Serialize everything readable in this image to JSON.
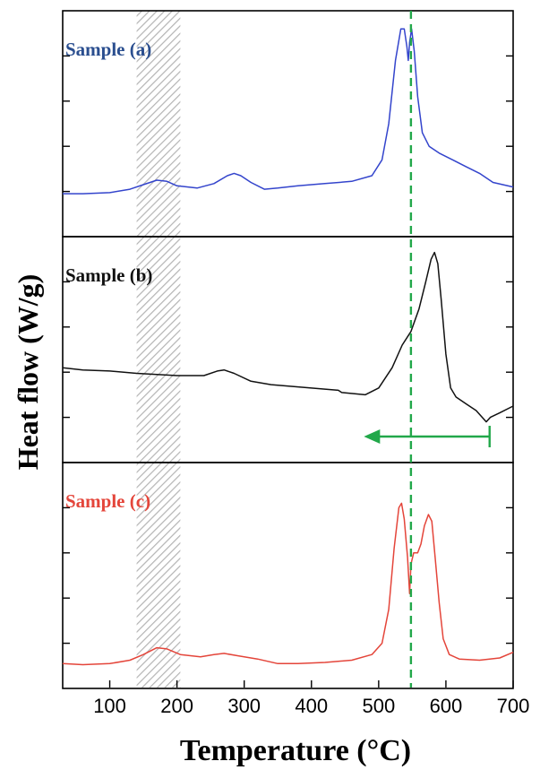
{
  "chart_data": {
    "type": "line",
    "xlabel": "Temperature (°C)",
    "ylabel": "Heat flow (W/g)",
    "xlim": [
      30,
      700
    ],
    "xticks": [
      100,
      200,
      300,
      400,
      500,
      600,
      700
    ],
    "grid": false,
    "legend": "none",
    "shaded_band": [
      140,
      205
    ],
    "reference_line_x": 548,
    "arrow": {
      "from_x": 665,
      "to_x": 478,
      "color": "#22a84a",
      "direction": "left"
    },
    "panels": [
      {
        "label": "Sample (a)",
        "color": "#3344cc",
        "label_color": "#2a4e8f",
        "ylim": [
          0,
          1
        ],
        "points": [
          [
            30,
            0.19
          ],
          [
            60,
            0.19
          ],
          [
            100,
            0.195
          ],
          [
            130,
            0.21
          ],
          [
            150,
            0.23
          ],
          [
            170,
            0.25
          ],
          [
            185,
            0.245
          ],
          [
            200,
            0.225
          ],
          [
            230,
            0.215
          ],
          [
            255,
            0.235
          ],
          [
            275,
            0.27
          ],
          [
            285,
            0.28
          ],
          [
            295,
            0.27
          ],
          [
            310,
            0.24
          ],
          [
            330,
            0.21
          ],
          [
            350,
            0.215
          ],
          [
            380,
            0.225
          ],
          [
            420,
            0.235
          ],
          [
            460,
            0.245
          ],
          [
            490,
            0.27
          ],
          [
            505,
            0.34
          ],
          [
            515,
            0.5
          ],
          [
            525,
            0.78
          ],
          [
            533,
            0.92
          ],
          [
            538,
            0.92
          ],
          [
            542,
            0.84
          ],
          [
            544,
            0.78
          ],
          [
            546,
            0.86
          ],
          [
            549,
            0.92
          ],
          [
            553,
            0.82
          ],
          [
            558,
            0.62
          ],
          [
            565,
            0.46
          ],
          [
            575,
            0.4
          ],
          [
            590,
            0.37
          ],
          [
            610,
            0.34
          ],
          [
            630,
            0.31
          ],
          [
            650,
            0.28
          ],
          [
            670,
            0.24
          ],
          [
            700,
            0.22
          ]
        ]
      },
      {
        "label": "Sample (b)",
        "color": "#111111",
        "label_color": "#111111",
        "ylim": [
          0,
          1
        ],
        "points": [
          [
            30,
            0.42
          ],
          [
            60,
            0.41
          ],
          [
            100,
            0.405
          ],
          [
            140,
            0.395
          ],
          [
            200,
            0.385
          ],
          [
            240,
            0.385
          ],
          [
            260,
            0.405
          ],
          [
            270,
            0.41
          ],
          [
            285,
            0.395
          ],
          [
            310,
            0.36
          ],
          [
            340,
            0.345
          ],
          [
            380,
            0.335
          ],
          [
            440,
            0.32
          ],
          [
            445,
            0.31
          ],
          [
            480,
            0.3
          ],
          [
            500,
            0.33
          ],
          [
            520,
            0.42
          ],
          [
            535,
            0.52
          ],
          [
            548,
            0.58
          ],
          [
            560,
            0.68
          ],
          [
            570,
            0.8
          ],
          [
            578,
            0.9
          ],
          [
            583,
            0.93
          ],
          [
            588,
            0.88
          ],
          [
            593,
            0.72
          ],
          [
            600,
            0.48
          ],
          [
            607,
            0.33
          ],
          [
            615,
            0.29
          ],
          [
            630,
            0.26
          ],
          [
            645,
            0.23
          ],
          [
            660,
            0.18
          ],
          [
            666,
            0.2
          ],
          [
            680,
            0.22
          ],
          [
            700,
            0.25
          ]
        ]
      },
      {
        "label": "Sample (c)",
        "color": "#e4453a",
        "label_color": "#e4453a",
        "ylim": [
          0,
          1
        ],
        "points": [
          [
            30,
            0.11
          ],
          [
            60,
            0.105
          ],
          [
            100,
            0.11
          ],
          [
            130,
            0.125
          ],
          [
            150,
            0.15
          ],
          [
            170,
            0.18
          ],
          [
            185,
            0.175
          ],
          [
            205,
            0.15
          ],
          [
            235,
            0.14
          ],
          [
            255,
            0.15
          ],
          [
            270,
            0.155
          ],
          [
            290,
            0.145
          ],
          [
            320,
            0.13
          ],
          [
            350,
            0.11
          ],
          [
            380,
            0.11
          ],
          [
            420,
            0.115
          ],
          [
            460,
            0.125
          ],
          [
            490,
            0.15
          ],
          [
            505,
            0.2
          ],
          [
            515,
            0.35
          ],
          [
            523,
            0.62
          ],
          [
            530,
            0.8
          ],
          [
            534,
            0.82
          ],
          [
            538,
            0.75
          ],
          [
            543,
            0.58
          ],
          [
            546,
            0.42
          ],
          [
            548,
            0.55
          ],
          [
            552,
            0.6
          ],
          [
            558,
            0.6
          ],
          [
            563,
            0.64
          ],
          [
            568,
            0.72
          ],
          [
            574,
            0.77
          ],
          [
            579,
            0.74
          ],
          [
            584,
            0.58
          ],
          [
            590,
            0.38
          ],
          [
            596,
            0.22
          ],
          [
            605,
            0.15
          ],
          [
            620,
            0.13
          ],
          [
            650,
            0.125
          ],
          [
            680,
            0.135
          ],
          [
            700,
            0.16
          ]
        ]
      }
    ]
  }
}
